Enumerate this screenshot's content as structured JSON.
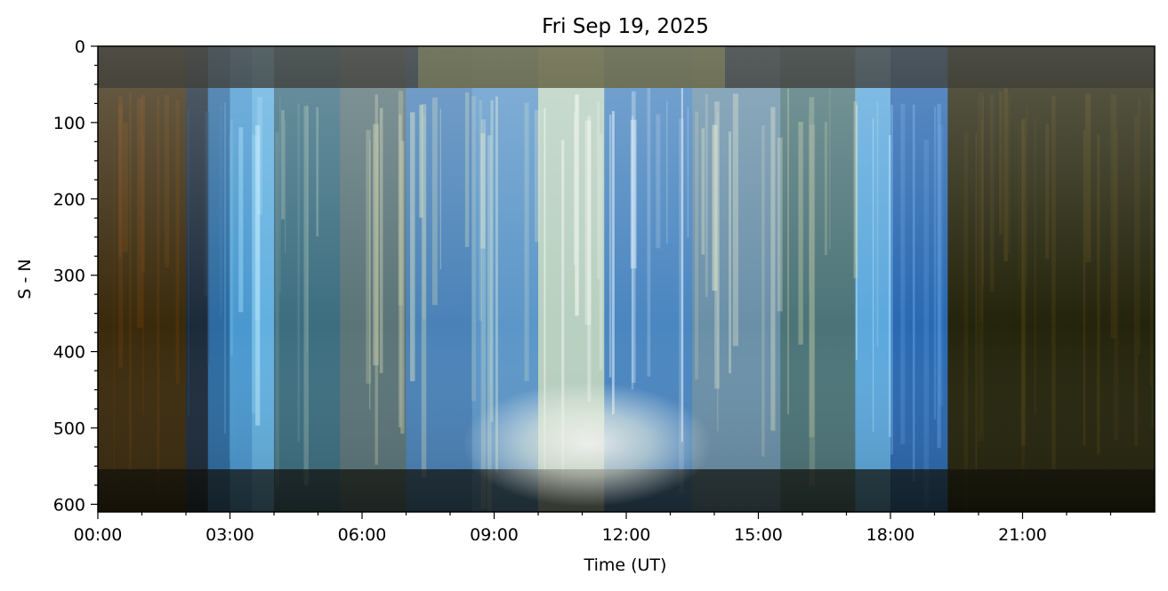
{
  "chart_data": {
    "type": "heatmap",
    "title": "Fri Sep 19, 2025",
    "xlabel": "Time (UT)",
    "ylabel": "S - N",
    "x_tick_labels": [
      "00:00",
      "03:00",
      "06:00",
      "09:00",
      "12:00",
      "15:00",
      "18:00",
      "21:00"
    ],
    "x_tick_hours": [
      0,
      3,
      6,
      9,
      12,
      15,
      18,
      21
    ],
    "x_range_hours": [
      0,
      24
    ],
    "y_tick_values": [
      0,
      100,
      200,
      300,
      400,
      500,
      600
    ],
    "y_tick_labels": [
      "0",
      "100",
      "200",
      "300",
      "400",
      "500",
      "600"
    ],
    "y_range": [
      0,
      610
    ],
    "y_inverted": true,
    "grid": false,
    "image_bands": [
      {
        "start": 0.0,
        "end": 2.0,
        "color": "#3a2a0c",
        "glow": "#6a3c0c"
      },
      {
        "start": 2.0,
        "end": 2.5,
        "color": "#1c2a3a",
        "glow": "#2a4c6c"
      },
      {
        "start": 2.5,
        "end": 3.0,
        "color": "#2c6aa0",
        "glow": "#4c9cd0"
      },
      {
        "start": 3.0,
        "end": 3.5,
        "color": "#4a98d0",
        "glow": "#8cd0f0"
      },
      {
        "start": 3.5,
        "end": 4.0,
        "color": "#62b0e0",
        "glow": "#c0ecff"
      },
      {
        "start": 4.0,
        "end": 5.5,
        "color": "#3c6e80",
        "glow": "#90b0a8"
      },
      {
        "start": 5.5,
        "end": 7.0,
        "color": "#5a7478",
        "glow": "#b8c0a0"
      },
      {
        "start": 7.0,
        "end": 8.5,
        "color": "#4a82b8",
        "glow": "#c8d8b8"
      },
      {
        "start": 8.5,
        "end": 10.0,
        "color": "#5c96c8",
        "glow": "#e0ecd0"
      },
      {
        "start": 10.0,
        "end": 11.5,
        "color": "#b8d0c0",
        "glow": "#ffffff"
      },
      {
        "start": 11.5,
        "end": 13.5,
        "color": "#4a86c0",
        "glow": "#e8f4ff"
      },
      {
        "start": 13.5,
        "end": 15.5,
        "color": "#6a90a8",
        "glow": "#e8eccc"
      },
      {
        "start": 15.5,
        "end": 17.2,
        "color": "#4c7478",
        "glow": "#a8b898"
      },
      {
        "start": 17.2,
        "end": 18.0,
        "color": "#5ca8dc",
        "glow": "#c0e8ff"
      },
      {
        "start": 18.0,
        "end": 19.3,
        "color": "#2a68b0",
        "glow": "#5ca0e0"
      },
      {
        "start": 19.3,
        "end": 24.0,
        "color": "#24240c",
        "glow": "#4a3c10"
      }
    ]
  }
}
